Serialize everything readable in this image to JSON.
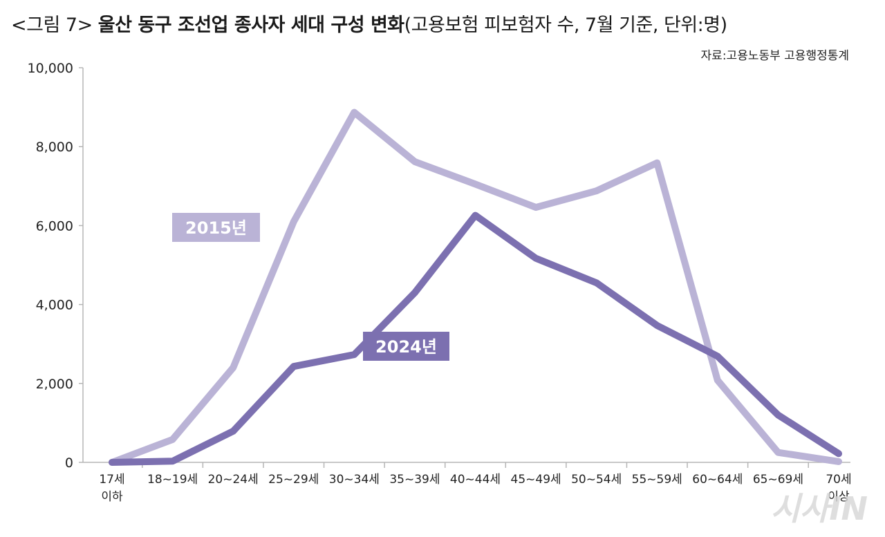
{
  "header": {
    "title_prefix": "<그림 7>",
    "title_main": "울산 동구 조선업 종사자 세대 구성 변화",
    "title_suffix": "(고용보험 피보험자 수, 7월 기준, 단위:명)",
    "source": "자료:고용노동부 고용행정통계"
  },
  "watermark": "시사IN",
  "chart_data": {
    "type": "line",
    "categories": [
      [
        "17세",
        "이하"
      ],
      [
        "18~19세"
      ],
      [
        "20~24세"
      ],
      [
        "25~29세"
      ],
      [
        "30~34세"
      ],
      [
        "35~39세"
      ],
      [
        "40~44세"
      ],
      [
        "45~49세"
      ],
      [
        "50~54세"
      ],
      [
        "55~59세"
      ],
      [
        "60~64세"
      ],
      [
        "65~69세"
      ],
      [
        "70세",
        "이상"
      ]
    ],
    "yticks": [
      "10,000",
      "8,000",
      "6,000",
      "4,000",
      "2,000",
      "0"
    ],
    "ylim": [
      0,
      10000
    ],
    "grid": false,
    "series": [
      {
        "name": "2015년",
        "color": "#bab3d6",
        "values": [
          0,
          580,
          2400,
          6100,
          8870,
          7620,
          7050,
          6460,
          6880,
          7590,
          2080,
          250,
          20
        ]
      },
      {
        "name": "2024년",
        "color": "#7c70b0",
        "values": [
          0,
          30,
          790,
          2430,
          2730,
          4300,
          6260,
          5170,
          4550,
          3470,
          2690,
          1200,
          220
        ]
      }
    ]
  }
}
